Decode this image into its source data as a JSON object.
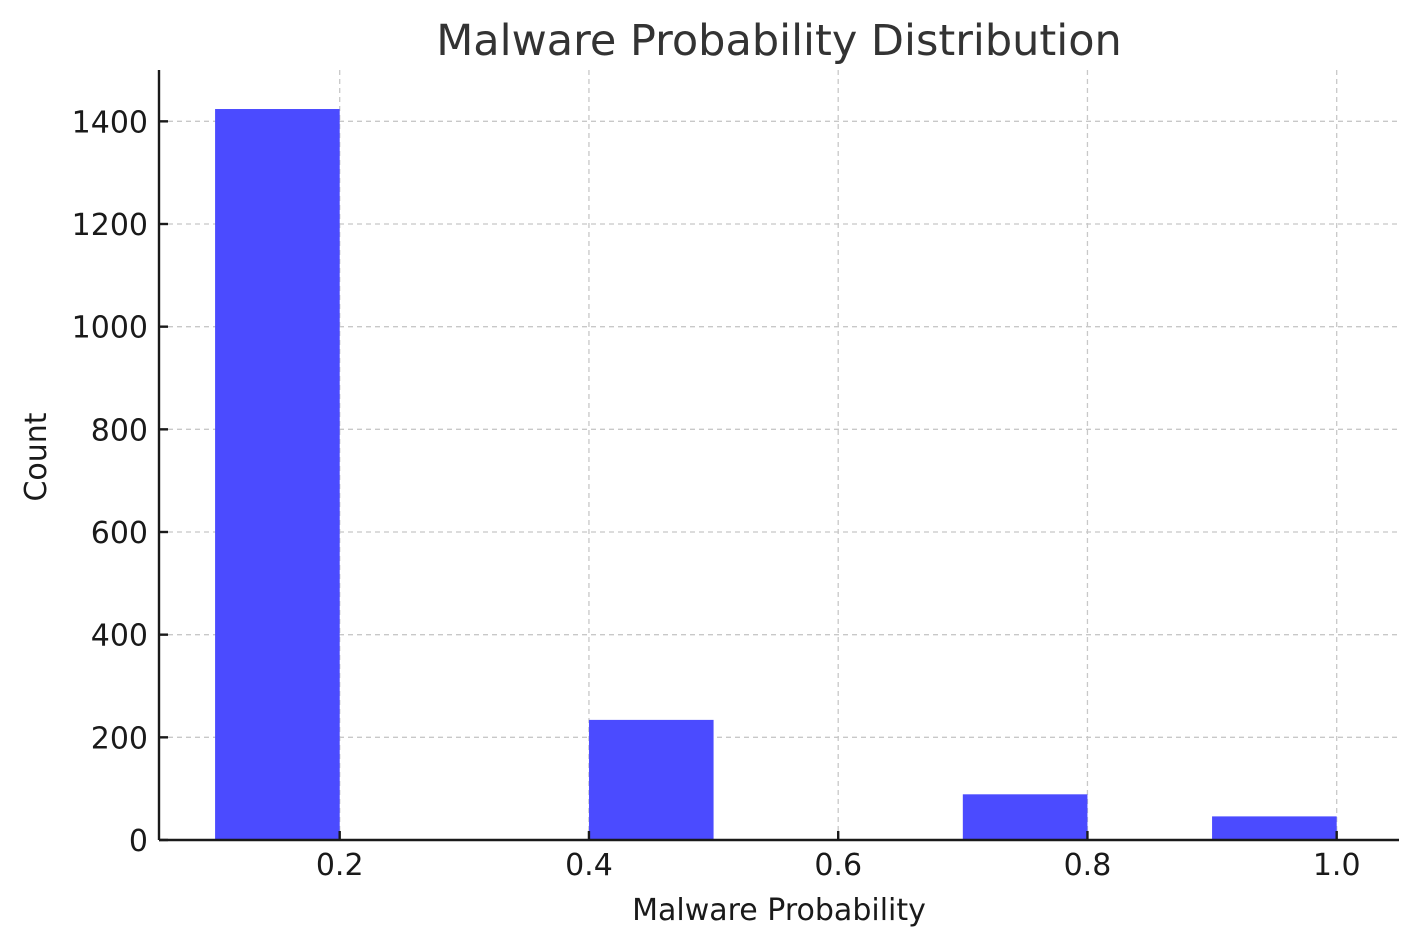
{
  "chart_data": {
    "type": "bar",
    "title": "Malware Probability Distribution",
    "xlabel": "Malware Probability",
    "ylabel": "Count",
    "xlim": [
      0.055,
      1.05
    ],
    "ylim": [
      0,
      1500
    ],
    "xticks": [
      0.2,
      0.4,
      0.6,
      0.8,
      1.0
    ],
    "xtick_labels": [
      "0.2",
      "0.4",
      "0.6",
      "0.8",
      "1.0"
    ],
    "yticks": [
      0,
      200,
      400,
      600,
      800,
      1000,
      1200,
      1400
    ],
    "ytick_labels": [
      "0",
      "200",
      "400",
      "600",
      "800",
      "1000",
      "1200",
      "1400"
    ],
    "bins": [
      {
        "x_start": 0.1,
        "x_end": 0.2,
        "value": 1424
      },
      {
        "x_start": 0.4,
        "x_end": 0.5,
        "value": 234
      },
      {
        "x_start": 0.7,
        "x_end": 0.8,
        "value": 89
      },
      {
        "x_start": 0.9,
        "x_end": 1.0,
        "value": 46
      }
    ],
    "grid": true,
    "bar_color": "#4b4bff"
  }
}
